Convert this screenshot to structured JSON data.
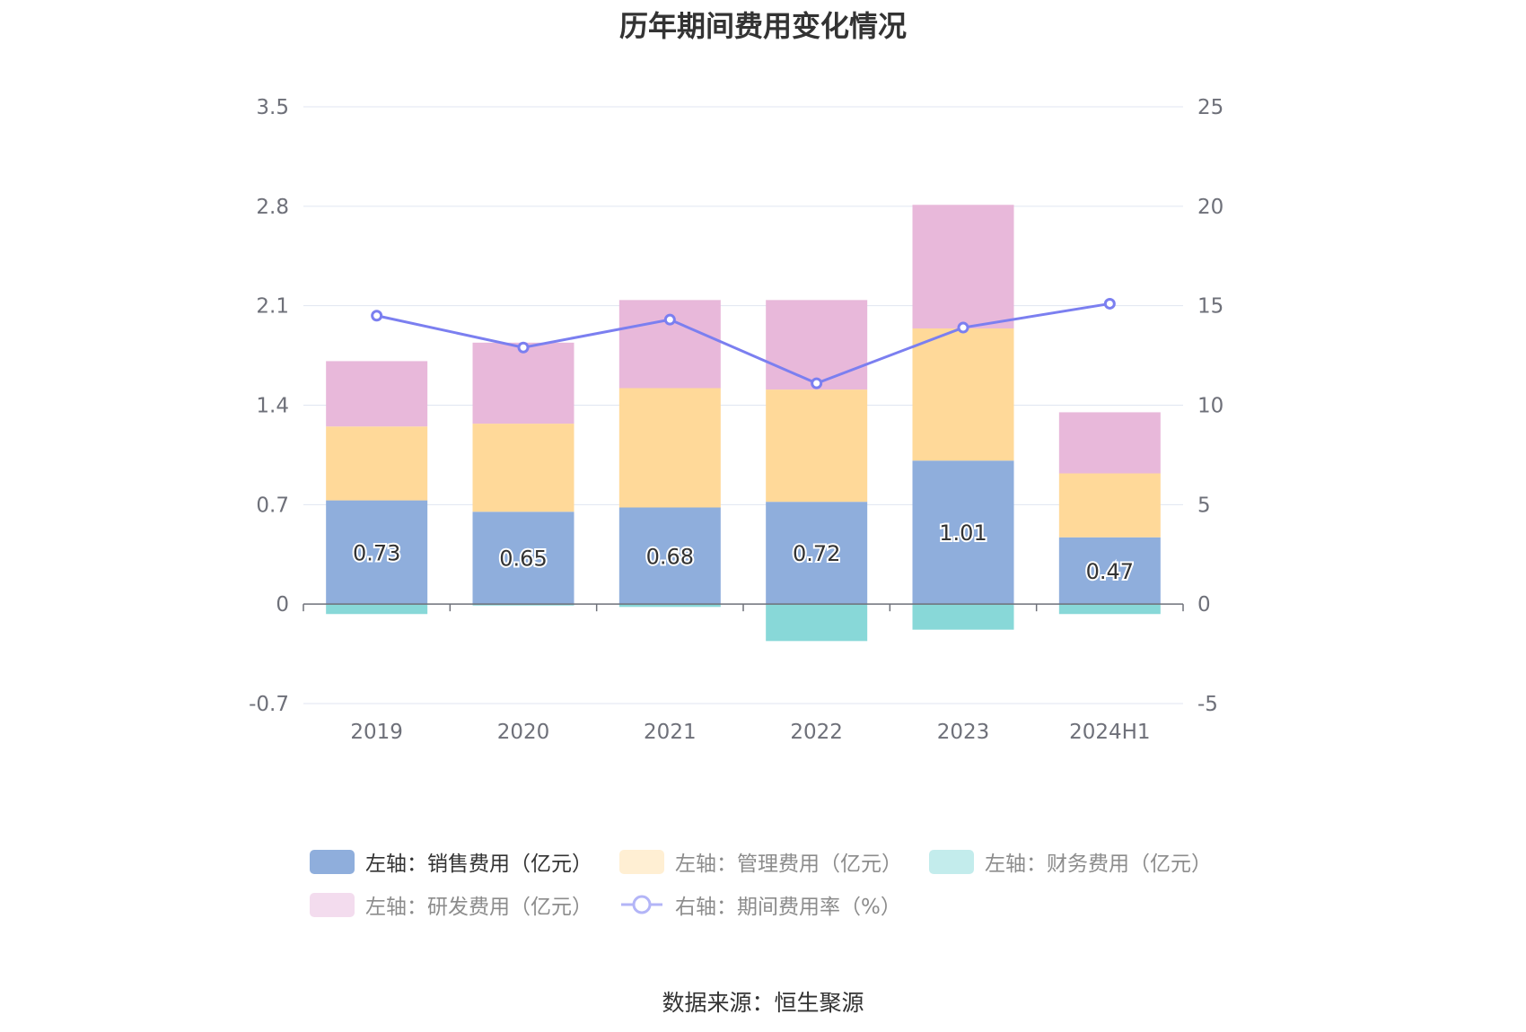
{
  "chart_data": {
    "type": "bar",
    "title": "历年期间费用变化情况",
    "categories": [
      "2019",
      "2020",
      "2021",
      "2022",
      "2023",
      "2024H1"
    ],
    "stacked": true,
    "y_left": {
      "ylim": [
        -0.7,
        3.5
      ],
      "ticks": [
        "3.5",
        "2.8",
        "2.1",
        "1.4",
        "0.7",
        "0",
        "-0.7"
      ]
    },
    "y_right": {
      "ylim": [
        -5,
        25
      ],
      "ticks": [
        "25",
        "20",
        "15",
        "10",
        "5",
        "0",
        "-5"
      ]
    },
    "series": [
      {
        "name": "左轴：销售费用（亿元）",
        "axis": "left",
        "type": "bar",
        "color": "#8faedc",
        "values": [
          0.73,
          0.65,
          0.68,
          0.72,
          1.01,
          0.47
        ],
        "data_labels": [
          "0.73",
          "0.65",
          "0.68",
          "0.72",
          "1.01",
          "0.47"
        ]
      },
      {
        "name": "左轴：管理费用（亿元）",
        "axis": "left",
        "type": "bar",
        "color": "#ffd999",
        "values": [
          0.52,
          0.62,
          0.84,
          0.79,
          0.93,
          0.45
        ]
      },
      {
        "name": "左轴：财务费用（亿元）",
        "axis": "left",
        "type": "bar",
        "color": "#88d8d8",
        "values": [
          -0.07,
          -0.01,
          -0.02,
          -0.26,
          -0.18,
          -0.07
        ]
      },
      {
        "name": "左轴：研发费用（亿元）",
        "axis": "left",
        "type": "bar",
        "color": "#e8b8da",
        "values": [
          0.46,
          0.57,
          0.62,
          0.63,
          0.87,
          0.43
        ]
      },
      {
        "name": "右轴：期间费用率（%）",
        "axis": "right",
        "type": "line",
        "color": "#7b7ff0",
        "values": [
          14.5,
          12.9,
          14.3,
          11.1,
          13.9,
          15.1
        ]
      }
    ],
    "legend": {
      "placement": "bottom",
      "items": [
        {
          "label": "左轴：销售费用（亿元）",
          "color": "#8faedc",
          "active": true,
          "icon": "swatch"
        },
        {
          "label": "左轴：管理费用（亿元）",
          "color": "#ffefd3",
          "active": false,
          "icon": "swatch"
        },
        {
          "label": "左轴：财务费用（亿元）",
          "color": "#c3ecec",
          "active": false,
          "icon": "swatch"
        },
        {
          "label": "左轴：研发费用（亿元）",
          "color": "#f3dcee",
          "active": false,
          "icon": "swatch"
        },
        {
          "label": "右轴：期间费用率（%）",
          "color": "#b3b5f7",
          "active": false,
          "icon": "line-circle"
        }
      ]
    },
    "grid": true
  },
  "source": "数据来源：恒生聚源"
}
